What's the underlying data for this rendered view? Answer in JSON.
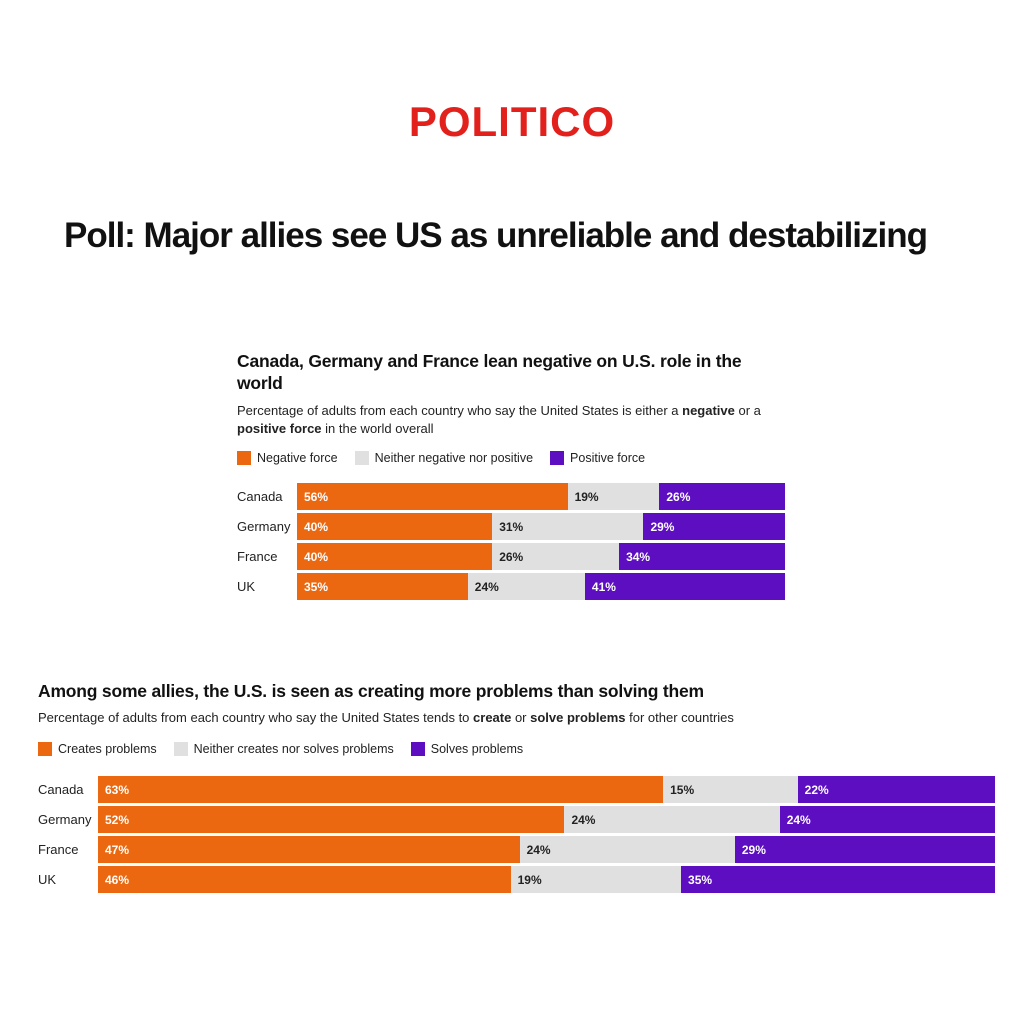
{
  "logo": {
    "text": "POLITICO",
    "color": "#e2211c"
  },
  "headline": "Poll: Major allies see US as unreliable and destabilizing",
  "colors": {
    "negative": "#ec6810",
    "neutral": "#e0e0e0",
    "positive": "#5c0ec0"
  },
  "chart_data": [
    {
      "type": "bar",
      "stacked": true,
      "orientation": "horizontal",
      "title": "Canada, Germany and France lean negative on U.S. role in the world",
      "subtitle_parts": [
        {
          "text": "Percentage of adults from each country who say the United States is either a ",
          "bold": false
        },
        {
          "text": "negative",
          "bold": true
        },
        {
          "text": " or a ",
          "bold": false
        },
        {
          "text": "positive force",
          "bold": true
        },
        {
          "text": " in the world overall",
          "bold": false
        }
      ],
      "categories": [
        "Canada",
        "Germany",
        "France",
        "UK"
      ],
      "series": [
        {
          "name": "Negative force",
          "color": "#ec6810",
          "values": [
            56,
            40,
            40,
            35
          ]
        },
        {
          "name": "Neither negative nor positive",
          "color": "#e0e0e0",
          "values": [
            19,
            31,
            26,
            24
          ]
        },
        {
          "name": "Positive force",
          "color": "#5c0ec0",
          "values": [
            26,
            29,
            34,
            41
          ]
        }
      ],
      "value_suffix": "%",
      "legend_position": "top",
      "axis": "none"
    },
    {
      "type": "bar",
      "stacked": true,
      "orientation": "horizontal",
      "title": "Among some allies, the U.S. is seen as creating more problems than solving them",
      "subtitle_parts": [
        {
          "text": "Percentage of adults from each country who say the United States tends to ",
          "bold": false
        },
        {
          "text": "create",
          "bold": true
        },
        {
          "text": " or ",
          "bold": false
        },
        {
          "text": "solve problems",
          "bold": true
        },
        {
          "text": " for other countries",
          "bold": false
        }
      ],
      "categories": [
        "Canada",
        "Germany",
        "France",
        "UK"
      ],
      "series": [
        {
          "name": "Creates problems",
          "color": "#ec6810",
          "values": [
            63,
            52,
            47,
            46
          ]
        },
        {
          "name": "Neither creates nor solves problems",
          "color": "#e0e0e0",
          "values": [
            15,
            24,
            24,
            19
          ]
        },
        {
          "name": "Solves problems",
          "color": "#5c0ec0",
          "values": [
            22,
            24,
            29,
            35
          ]
        }
      ],
      "value_suffix": "%",
      "legend_position": "top",
      "axis": "none"
    }
  ]
}
